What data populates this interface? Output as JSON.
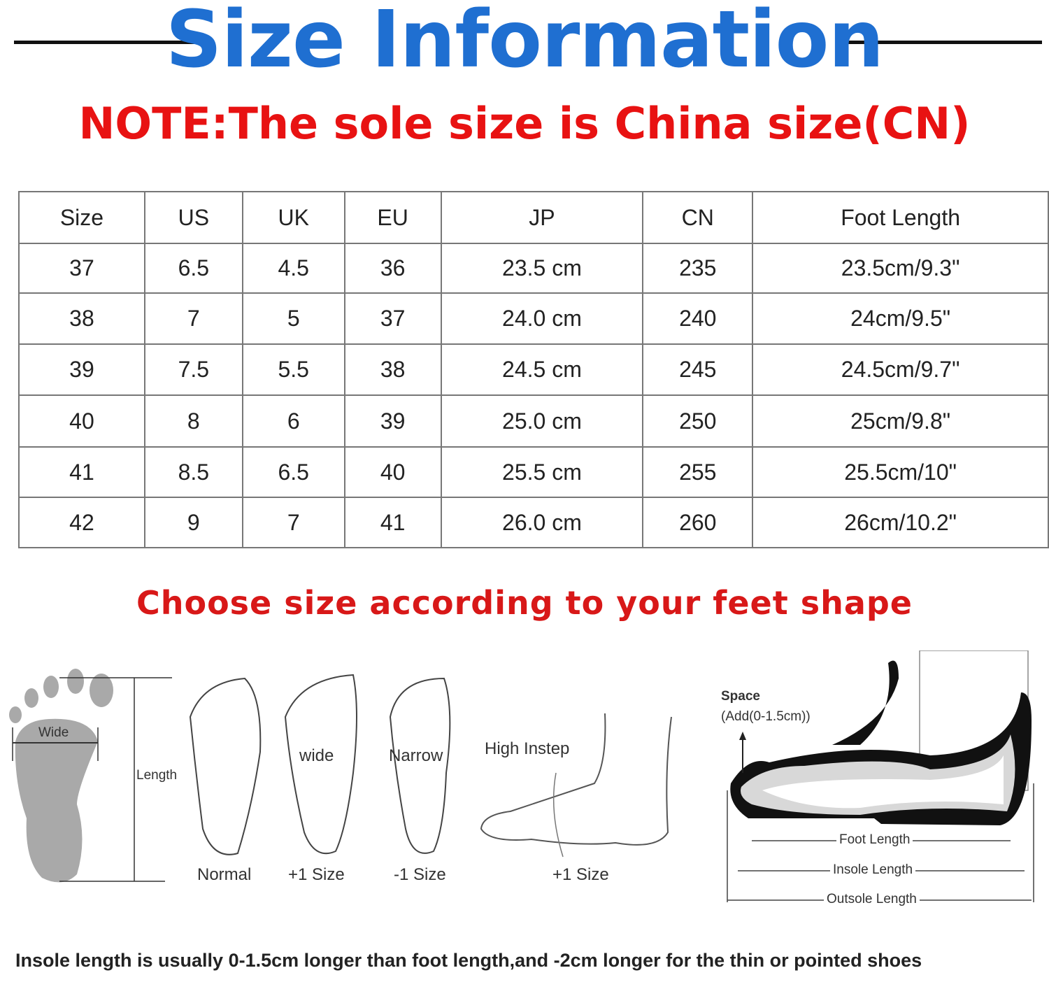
{
  "header": {
    "title": "Size Information",
    "note": "NOTE:The sole size is China size(CN)",
    "accent_color": "#1f6fd1",
    "note_color": "#e81212"
  },
  "table": {
    "columns": [
      "Size",
      "US",
      "UK",
      "EU",
      "JP",
      "CN",
      "Foot Length"
    ],
    "rows": [
      [
        "37",
        "6.5",
        "4.5",
        "36",
        "23.5 cm",
        "235",
        "23.5cm/9.3\""
      ],
      [
        "38",
        "7",
        "5",
        "37",
        "24.0 cm",
        "240",
        "24cm/9.5\""
      ],
      [
        "39",
        "7.5",
        "5.5",
        "38",
        "24.5 cm",
        "245",
        "24.5cm/9.7\""
      ],
      [
        "40",
        "8",
        "6",
        "39",
        "25.0 cm",
        "250",
        "25cm/9.8\""
      ],
      [
        "41",
        "8.5",
        "6.5",
        "40",
        "25.5 cm",
        "255",
        "25.5cm/10\""
      ],
      [
        "42",
        "9",
        "7",
        "41",
        "26.0 cm",
        "260",
        "26cm/10.2\""
      ]
    ]
  },
  "guide": {
    "title": "Choose size according to your feet shape",
    "wide": "Wide",
    "length": "Length",
    "normal": "Normal",
    "wide_foot": "wide",
    "wide_size": "+1 Size",
    "narrow": "Narrow",
    "narrow_size": "-1 Size",
    "high_instep": "High Instep",
    "high_instep_size": "+1 Size",
    "space": "Space",
    "space_add": "(Add(0-1.5cm))",
    "foot_length": "Foot Length",
    "insole_length": "Insole Length",
    "outsole_length": "Outsole Length"
  },
  "footer": "Insole length is usually 0-1.5cm longer than foot length,and -2cm longer for the thin or pointed shoes"
}
